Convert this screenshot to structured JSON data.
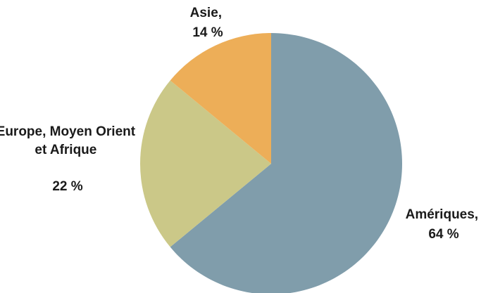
{
  "chart_data": {
    "type": "pie",
    "slices": [
      {
        "label": "Amériques,",
        "value_label": "64 %",
        "value": 64,
        "color": "#809dab"
      },
      {
        "label": "Europe, Moyen Orient et Afrique",
        "value_label": "22 %",
        "value": 22,
        "color": "#cbc888"
      },
      {
        "label": "Asie,",
        "value_label": "14 %",
        "value": 14,
        "color": "#edae58"
      }
    ],
    "start_angle_deg": 0,
    "direction": "clockwise",
    "legend": "none"
  }
}
